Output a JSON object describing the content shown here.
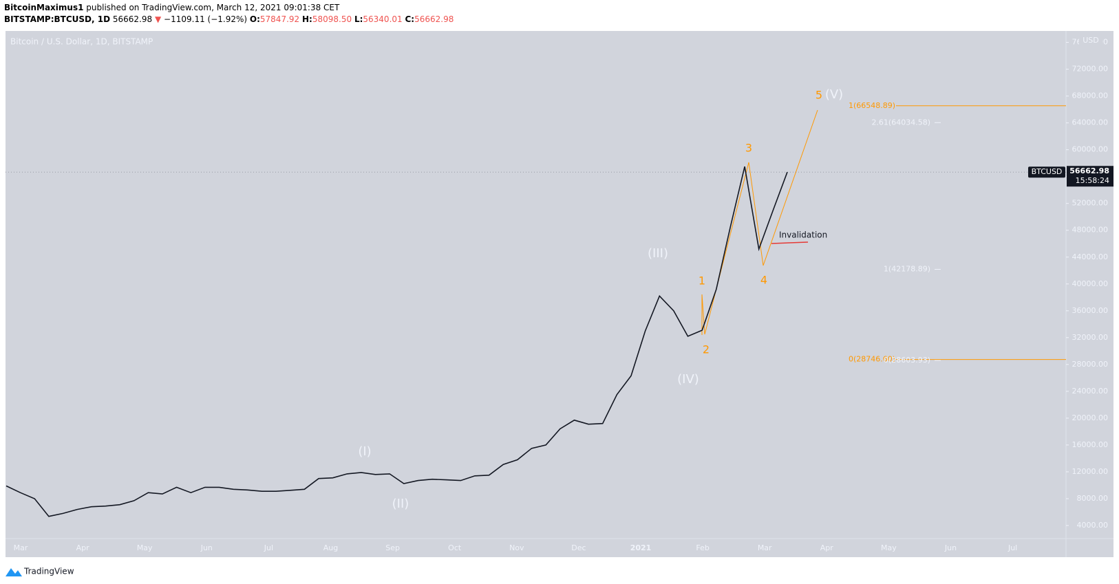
{
  "header": {
    "author": "BitcoinMaximus1",
    "published": "published on TradingView.com, March 12, 2021 09:01:38 CET"
  },
  "symbol_bar": {
    "symbol": "BITSTAMP:BTCUSD, 1D",
    "last": "56662.98",
    "arrow": "▼",
    "change": "−1109.11 (−1.92%)",
    "open_label": "O:",
    "open": "57847.92",
    "high_label": "H:",
    "high": "58098.50",
    "low_label": "L:",
    "low": "56340.01",
    "close_label": "C:",
    "close": "56662.98"
  },
  "chart_data": {
    "type": "line",
    "title": "Bitcoin / U.S. Dollar, 1D, BITSTAMP",
    "time_axis_labels": [
      "Mar",
      "Apr",
      "May",
      "Jun",
      "Jul",
      "Aug",
      "Sep",
      "Oct",
      "Nov",
      "Dec",
      "2021",
      "Feb",
      "Mar",
      "Apr",
      "May",
      "Jun",
      "Jul"
    ],
    "series": [
      {
        "name": "BTCUSD",
        "color": "#131722",
        "values": [
          9900,
          8900,
          8000,
          5360,
          5800,
          6400,
          6800,
          6900,
          7100,
          7700,
          8900,
          8700,
          9700,
          8900,
          9700,
          9700,
          9400,
          9300,
          9100,
          9100,
          9250,
          9400,
          11000,
          11100,
          11700,
          11900,
          11600,
          11700,
          10250,
          10700,
          10900,
          10800,
          10700,
          11400,
          11500,
          13100,
          13800,
          15500,
          16000,
          18400,
          19700,
          19100,
          19200,
          23500,
          26300,
          33000,
          38200,
          36000,
          32200,
          33100,
          39200,
          48600,
          57500,
          45200,
          51000,
          56662.98
        ]
      }
    ],
    "last_price": 56662.98,
    "countdown": "15:58:24",
    "y_unit": "USD",
    "ylim": [
      2050,
      77700
    ],
    "yticks": [
      {
        "value": 4000,
        "label": "4000.00"
      },
      {
        "value": 8000,
        "label": "8000.00"
      },
      {
        "value": 12000,
        "label": "12000.00"
      },
      {
        "value": 16000,
        "label": "16000.00"
      },
      {
        "value": 20000,
        "label": "20000.00"
      },
      {
        "value": 24000,
        "label": "24000.00"
      },
      {
        "value": 28000,
        "label": "28000.00"
      },
      {
        "value": 32000,
        "label": "32000.00"
      },
      {
        "value": 36000,
        "label": "36000.00"
      },
      {
        "value": 40000,
        "label": "40000.00"
      },
      {
        "value": 44000,
        "label": "44000.00"
      },
      {
        "value": 48000,
        "label": "48000.00"
      },
      {
        "value": 52000,
        "label": "52000.00"
      },
      {
        "value": 56000,
        "label": "56000.00"
      },
      {
        "value": 60000,
        "label": "60000.00"
      },
      {
        "value": 64000,
        "label": "64000.00"
      },
      {
        "value": 68000,
        "label": "68000.00"
      },
      {
        "value": 72000,
        "label": "72000.00"
      },
      {
        "value": 76000,
        "label": "76000.00"
      }
    ],
    "fib_levels": [
      {
        "label": "1(66548.89)",
        "value": 66548.89,
        "color": "#ff9800"
      },
      {
        "label": "2.61(64034.58)",
        "value": 64034.58,
        "color": "#f0f3fa"
      },
      {
        "label": "1(42178.89)",
        "value": 42178.89,
        "color": "#f0f3fa"
      },
      {
        "label": "0(28746.60)",
        "value": 28746.6,
        "color": "#ff9800"
      },
      {
        "label": "0(28603.93)",
        "value": 28603.93,
        "color": "#f0f3fa"
      }
    ],
    "wave_labels": [
      "(I)",
      "(II)",
      "(III)",
      "(IV)",
      "(V)",
      "1",
      "2",
      "3",
      "4",
      "5"
    ],
    "invalidation": "Invalidation"
  },
  "footer": {
    "brand": "TradingView"
  }
}
